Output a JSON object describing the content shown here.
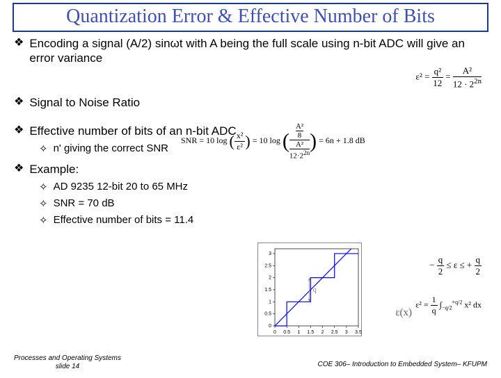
{
  "title": "Quantization Error & Effective Number of Bits",
  "bullets": {
    "b1": "Encoding a signal (A/2) sinωt with A being the full scale using n-bit ADC will give an error variance",
    "b2": "Signal to Noise Ratio",
    "b3": "Effective number of bits of an n-bit ADC",
    "b3s1": "n' giving the correct SNR",
    "b4": "Example:",
    "b4s1": "AD 9235 12-bit 20 to 65 MHz",
    "b4s2": "SNR = 70 dB",
    "b4s3": "Effective number of bits = 11.4"
  },
  "formulas": {
    "f1_html": "ε² = <span style='display:inline-block;text-align:center;vertical-align:middle'><span style='display:block;border-bottom:1px solid #000;padding:0 3px'>q²</span><span style='display:block'>12</span></span> = <span style='display:inline-block;text-align:center;vertical-align:middle'><span style='display:block;border-bottom:1px solid #000;padding:0 3px'>A²</span><span style='display:block'>12 · 2<sup>2n</sup></span></span>",
    "f2_html": "SNR = 10 log <span style='font-size:22px;vertical-align:middle'>(</span><span style='display:inline-block;text-align:center;vertical-align:middle'><span style='display:block;border-bottom:1px solid #000;padding:0 3px'>x²</span><span style='display:block'>ε²</span></span><span style='font-size:22px;vertical-align:middle'>)</span> = 10 log <span style='font-size:30px;vertical-align:middle'>(</span><span style='display:inline-block;text-align:center;vertical-align:middle'><span style='display:block;border-bottom:1px solid #000;padding:0 2px'><span style='display:inline-block;text-align:center;vertical-align:middle;font-size:11px'><span style='display:block;border-bottom:1px solid #000'>A²</span><span style='display:block'>8</span></span></span><span style='display:block;font-size:11px'><span style='display:inline-block;text-align:center;vertical-align:middle'><span style='display:block;border-bottom:1px solid #000'>A²</span><span style='display:block'>12·2<sup>2n</sup></span></span></span></span><span style='font-size:30px;vertical-align:middle'>)</span> = 6n + 1.8 dB",
    "f3_html": "− <span style='display:inline-block;text-align:center;vertical-align:middle'><span style='display:block;border-bottom:1px solid #000;padding:0 2px'>q</span><span style='display:block'>2</span></span> ≤ ε ≤ + <span style='display:inline-block;text-align:center;vertical-align:middle'><span style='display:block;border-bottom:1px solid #000;padding:0 2px'>q</span><span style='display:block'>2</span></span>",
    "f4_html": "ε² = <span style='display:inline-block;text-align:center;vertical-align:middle'><span style='display:block;border-bottom:1px solid #000;padding:0 2px'>1</span><span style='display:block'>q</span></span> ∫<sub style='font-size:8px'>−q/2</sub><sup style='font-size:8px'>+q/2</sup> x² dx"
  },
  "chart": {
    "xlim": [
      0,
      3.5
    ],
    "ylim": [
      0,
      3.2
    ],
    "xtick_step": 0.5,
    "ytick_step": 0.5,
    "background": "#ffffff",
    "axis_color": "#000000",
    "line1_color": "#0000ff",
    "step_color": "#0000ff",
    "annotation": "q",
    "annotation_color": "#808080",
    "eps_label": "ε(x)",
    "step_points_x": [
      0,
      0.5,
      0.5,
      1.5,
      1.5,
      2.5,
      2.5,
      3.5
    ],
    "step_points_y": [
      0,
      0,
      1,
      1,
      2,
      2,
      3,
      3
    ],
    "line_points_x": [
      0,
      3.2
    ],
    "line_points_y": [
      0,
      3.2
    ]
  },
  "footer": {
    "left1": "Processes and Operating Systems",
    "left2": "slide 14",
    "right": "COE 306– Introduction to Embedded System– KFUPM"
  },
  "glyphs": {
    "diamond": "❖",
    "open_diamond": "✧"
  },
  "colors": {
    "title": "#4050b0",
    "title_border": "#1e3a8a",
    "text": "#000000",
    "gray": "#808080"
  }
}
